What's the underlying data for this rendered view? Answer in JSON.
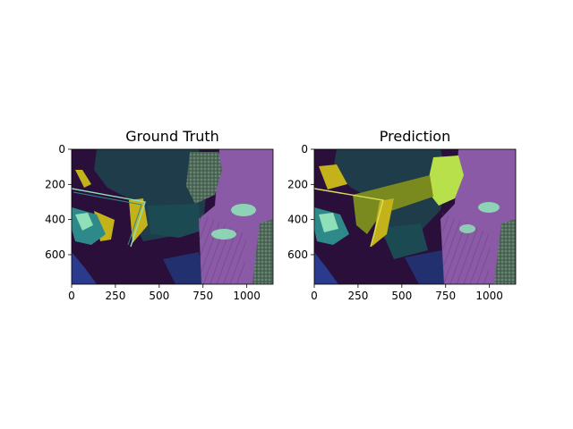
{
  "chart_data": [
    {
      "type": "image",
      "title": "Ground Truth",
      "xlim": [
        0,
        1150
      ],
      "ylim": [
        768,
        0
      ],
      "xticks": [
        0,
        250,
        500,
        750,
        1000
      ],
      "yticks": [
        0,
        200,
        400,
        600
      ],
      "colors": {
        "background": "#1f3c4a",
        "dark": "#2a0f3a",
        "purple": "#8a5aa6",
        "teal": "#2e8a8a",
        "yellow": "#c4b21a",
        "mint": "#8fe0b8",
        "blue": "#2a3a8c"
      }
    },
    {
      "type": "image",
      "title": "Prediction",
      "xlim": [
        0,
        1150
      ],
      "ylim": [
        768,
        0
      ],
      "xticks": [
        0,
        250,
        500,
        750,
        1000
      ],
      "yticks": [
        0,
        200,
        400,
        600
      ],
      "colors": {
        "background": "#1f3c4a",
        "dark": "#2a0f3a",
        "purple": "#8a5aa6",
        "teal": "#2e8a8a",
        "yellow": "#c4b21a",
        "lime": "#b8e04a",
        "mint": "#8fe0b8",
        "blue": "#2a3a8c"
      }
    }
  ]
}
